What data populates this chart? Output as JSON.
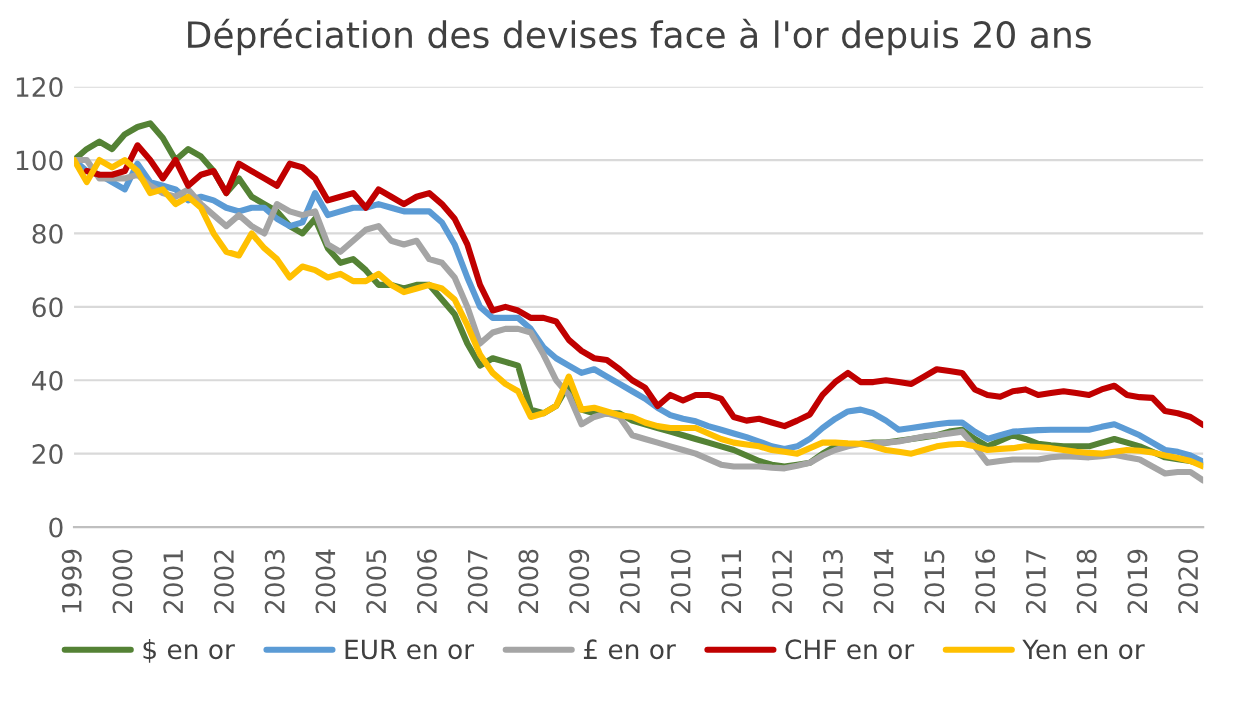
{
  "chart_data": {
    "type": "line",
    "title": "Dépréciation des devises face à l'or depuis 20 ans",
    "ylim": [
      0,
      120
    ],
    "yticks": [
      0,
      20,
      40,
      60,
      80,
      100,
      120
    ],
    "categories": [
      "1999",
      null,
      null,
      null,
      "2000",
      null,
      null,
      null,
      "2001",
      null,
      null,
      null,
      "2002",
      null,
      null,
      null,
      "2003",
      null,
      null,
      null,
      "2004",
      null,
      null,
      null,
      "2005",
      null,
      null,
      null,
      "2006",
      null,
      null,
      null,
      "2007",
      null,
      null,
      null,
      "2008",
      null,
      null,
      null,
      "2009",
      null,
      null,
      null,
      "2010",
      null,
      null,
      null,
      "2010",
      null,
      null,
      null,
      "2011",
      null,
      null,
      null,
      "2012",
      null,
      null,
      null,
      "2013",
      null,
      null,
      null,
      "2014",
      null,
      null,
      null,
      "2015",
      null,
      null,
      null,
      "2016",
      null,
      null,
      null,
      "2017",
      null,
      null,
      null,
      "2018",
      null,
      null,
      null,
      "2019",
      null,
      null,
      null,
      "2020",
      null
    ],
    "grid": "y",
    "legend": "bottom",
    "marker": "none",
    "line_style": "solid",
    "series": [
      {
        "name": "$ en or",
        "color": "#548235",
        "values": [
          100,
          103,
          105,
          103,
          107,
          109,
          110,
          106,
          100,
          103,
          101,
          97,
          91,
          95,
          90,
          88,
          86,
          82,
          80,
          84,
          76,
          72,
          73,
          70,
          66,
          66,
          65,
          66,
          66,
          62,
          58,
          50,
          44,
          46,
          45,
          44,
          32,
          31,
          33,
          39,
          32,
          31,
          31,
          31,
          29,
          28,
          27,
          26,
          25,
          24,
          23,
          22,
          21,
          19.5,
          18,
          17,
          16.5,
          17,
          17.5,
          20,
          22,
          22.5,
          22.7,
          23,
          23,
          23.5,
          24,
          24.5,
          25,
          26,
          26.5,
          24,
          22,
          23.5,
          25,
          24,
          22.7,
          22.3,
          22,
          22,
          22,
          23,
          24,
          23,
          22,
          20.5,
          19,
          18.5,
          18,
          17
        ]
      },
      {
        "name": "EUR en or",
        "color": "#5b9bd5",
        "values": [
          100,
          97,
          96,
          94,
          92,
          99,
          94,
          93,
          92,
          89,
          90,
          89,
          87,
          86,
          87,
          87,
          84,
          82,
          83,
          91,
          85,
          86,
          87,
          87,
          88,
          87,
          86,
          86,
          86,
          83,
          77,
          68,
          60,
          57,
          57,
          57,
          54,
          49,
          46,
          44,
          42,
          43,
          41,
          39,
          37,
          35,
          32.5,
          30.5,
          29.5,
          28.8,
          27.5,
          26.5,
          25.5,
          24.5,
          23.3,
          22,
          21.3,
          22,
          24,
          27,
          29.5,
          31.5,
          32,
          31,
          29,
          26.5,
          27,
          27.5,
          28,
          28.4,
          28.5,
          26,
          24,
          25,
          26,
          26.2,
          26.4,
          26.5,
          26.5,
          26.5,
          26.5,
          27.3,
          28,
          26.5,
          25,
          23,
          21,
          20.5,
          19.5,
          17.8
        ]
      },
      {
        "name": "£ en or",
        "color": "#a5a5a5",
        "values": [
          100,
          100,
          95,
          95,
          95,
          96,
          93,
          91,
          90,
          92,
          88,
          85,
          82,
          85,
          82,
          80,
          88,
          86,
          85,
          86,
          77,
          75,
          78,
          81,
          82,
          78,
          77,
          78,
          73,
          72,
          68,
          60,
          50,
          53,
          54,
          54,
          53,
          47,
          40,
          36,
          28,
          30,
          31,
          30,
          25,
          24,
          23,
          22,
          21,
          20,
          18.5,
          17,
          16.5,
          16.5,
          16.5,
          16.2,
          16,
          16.7,
          17.5,
          19.5,
          21,
          22,
          22.7,
          22.8,
          23,
          23.3,
          24,
          24.7,
          25,
          25.5,
          26,
          22,
          17.5,
          18,
          18.4,
          18.4,
          18.4,
          19,
          19.3,
          19.2,
          19,
          19.3,
          19.7,
          19,
          18.4,
          16.5,
          14.6,
          15,
          15,
          12.7
        ]
      },
      {
        "name": "CHF en or",
        "color": "#c00000",
        "values": [
          null,
          97,
          96,
          96,
          97,
          104,
          100,
          95,
          100,
          93,
          96,
          97,
          91,
          99,
          97,
          95,
          93,
          99,
          98,
          95,
          89,
          90,
          91,
          87,
          92,
          90,
          88,
          90,
          91,
          88,
          84,
          77,
          66,
          59,
          60,
          59,
          57,
          57,
          56,
          51,
          48,
          46,
          45.5,
          43,
          40,
          38,
          33,
          36,
          34.5,
          36,
          36,
          35,
          30,
          29,
          29.5,
          28.5,
          27.5,
          29,
          30.7,
          36,
          39.5,
          42,
          39.5,
          39.5,
          40,
          39.5,
          39,
          41,
          43,
          42.5,
          42,
          37.5,
          36,
          35.5,
          37,
          37.5,
          36,
          36.5,
          37,
          36.5,
          36,
          37.5,
          38.5,
          36,
          35.4,
          35.2,
          31.6,
          31,
          30,
          27.8
        ]
      },
      {
        "name": "Yen en or",
        "color": "#ffc000",
        "values": [
          100,
          94,
          100,
          98,
          100,
          97,
          91,
          92,
          88,
          90,
          87,
          80,
          75,
          74,
          80,
          76,
          73,
          68,
          71,
          70,
          68,
          69,
          67,
          67,
          69,
          66,
          64,
          65,
          66,
          65,
          62,
          55,
          47,
          42,
          39,
          37,
          30,
          31,
          33,
          41,
          32,
          32.5,
          31.5,
          30.5,
          30,
          28.5,
          27.5,
          27,
          27,
          27,
          25.5,
          24,
          23,
          22.5,
          22,
          21,
          20.5,
          20,
          21.5,
          23,
          23,
          22.8,
          22.7,
          22,
          21,
          20.5,
          20,
          21,
          22,
          22.5,
          22.7,
          22,
          21,
          21.3,
          21.5,
          22,
          21.8,
          21.5,
          21,
          20.5,
          20.2,
          20,
          20.5,
          21,
          20.8,
          20.3,
          19.5,
          18.8,
          18,
          16.5
        ]
      }
    ]
  }
}
